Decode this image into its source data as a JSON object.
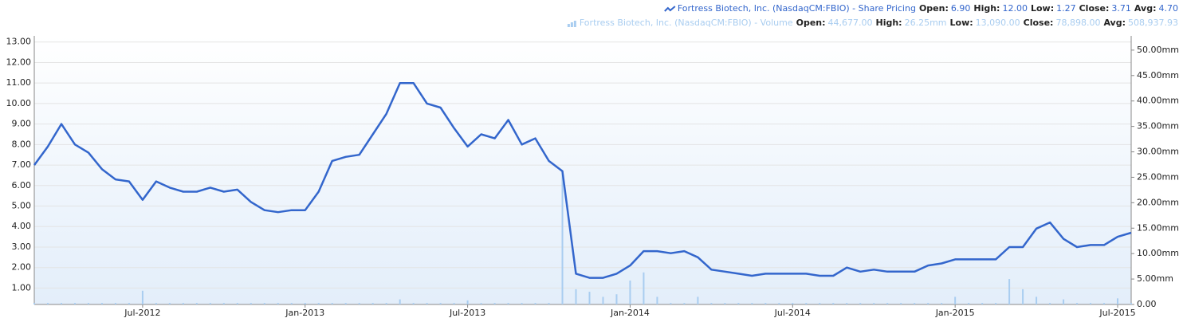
{
  "chart_data": {
    "type": "line",
    "categories": [
      null,
      null,
      null,
      null,
      null,
      null,
      null,
      null,
      "Jul-2012",
      null,
      null,
      null,
      null,
      null,
      null,
      null,
      null,
      null,
      null,
      null,
      "Jan-2013",
      null,
      null,
      null,
      null,
      null,
      null,
      null,
      null,
      null,
      null,
      null,
      "Jul-2013",
      null,
      null,
      null,
      null,
      null,
      null,
      null,
      null,
      null,
      null,
      null,
      "Jan-2014",
      null,
      null,
      null,
      null,
      null,
      null,
      null,
      null,
      null,
      null,
      null,
      "Jul-2014",
      null,
      null,
      null,
      null,
      null,
      null,
      null,
      null,
      null,
      null,
      null,
      "Jan-2015",
      null,
      null,
      null,
      null,
      null,
      null,
      null,
      null,
      null,
      null,
      null,
      "Jul-2015",
      null
    ],
    "series": [
      {
        "name": "Fortress Biotech, Inc. (NasdaqCM:FBIO) - Share Pricing",
        "color": "#3366cc",
        "stats": [
          {
            "label": "Open:",
            "value": "6.90"
          },
          {
            "label": "High:",
            "value": "12.00"
          },
          {
            "label": "Low:",
            "value": "1.27"
          },
          {
            "label": "Close:",
            "value": "3.71"
          },
          {
            "label": "Avg:",
            "value": "4.70"
          }
        ],
        "values": [
          7.0,
          7.9,
          9.0,
          8.0,
          7.6,
          6.8,
          6.3,
          6.2,
          5.3,
          6.2,
          5.9,
          5.7,
          5.7,
          5.9,
          5.7,
          5.8,
          5.2,
          4.8,
          4.7,
          4.8,
          4.8,
          5.7,
          7.2,
          7.4,
          7.5,
          8.5,
          9.5,
          11.0,
          11.0,
          10.0,
          9.8,
          8.8,
          7.9,
          8.5,
          8.3,
          9.2,
          8.0,
          8.3,
          7.2,
          6.7,
          1.7,
          1.5,
          1.5,
          1.7,
          2.1,
          2.8,
          2.8,
          2.7,
          2.8,
          2.5,
          1.9,
          1.8,
          1.7,
          1.6,
          1.7,
          1.7,
          1.7,
          1.7,
          1.6,
          1.6,
          2.0,
          1.8,
          1.9,
          1.8,
          1.8,
          1.8,
          2.1,
          2.2,
          2.4,
          2.4,
          2.4,
          2.4,
          3.0,
          3.0,
          3.9,
          4.2,
          3.4,
          3.0,
          3.1,
          3.1,
          3.5,
          3.7
        ]
      },
      {
        "name": "Fortress Biotech, Inc. (NasdaqCM:FBIO) - Volume",
        "color": "#a9cdf0",
        "axis": "y2",
        "stats": [
          {
            "label": "Open:",
            "value": "44,677.00"
          },
          {
            "label": "High:",
            "value": "26.25mm"
          },
          {
            "label": "Low:",
            "value": "13,090.00"
          },
          {
            "label": "Close:",
            "value": "78,898.00"
          },
          {
            "label": "Avg:",
            "value": "508,937.93"
          }
        ],
        "values": [
          0.3,
          0.3,
          0.3,
          0.3,
          0.3,
          0.3,
          0.3,
          0.3,
          2.7,
          0.3,
          0.3,
          0.3,
          0.3,
          0.3,
          0.3,
          0.3,
          0.3,
          0.3,
          0.3,
          0.3,
          0.3,
          0.3,
          0.3,
          0.3,
          0.3,
          0.3,
          0.3,
          1.0,
          0.3,
          0.3,
          0.3,
          0.3,
          0.8,
          0.3,
          0.3,
          0.3,
          0.3,
          0.3,
          0.3,
          26.25,
          3.0,
          2.5,
          1.5,
          2.0,
          4.7,
          6.3,
          1.5,
          0.3,
          0.3,
          1.5,
          0.3,
          0.3,
          0.3,
          0.3,
          0.3,
          0.3,
          0.3,
          0.3,
          0.3,
          0.3,
          0.3,
          0.3,
          0.3,
          0.3,
          0.3,
          0.3,
          0.3,
          0.3,
          1.5,
          0.3,
          0.3,
          0.3,
          5.0,
          3.0,
          1.5,
          0.3,
          1.0,
          0.3,
          0.3,
          0.3,
          1.2,
          0.3
        ]
      }
    ],
    "ylim": [
      0.2,
      13.3
    ],
    "yticks": [
      {
        "value": 1,
        "label": "1.00"
      },
      {
        "value": 2,
        "label": "2.00"
      },
      {
        "value": 3,
        "label": "3.00"
      },
      {
        "value": 4,
        "label": "4.00"
      },
      {
        "value": 5,
        "label": "5.00"
      },
      {
        "value": 6,
        "label": "6.00"
      },
      {
        "value": 7,
        "label": "7.00"
      },
      {
        "value": 8,
        "label": "8.00"
      },
      {
        "value": 9,
        "label": "9.00"
      },
      {
        "value": 10,
        "label": "10.00"
      },
      {
        "value": 11,
        "label": "11.00"
      },
      {
        "value": 12,
        "label": "12.00"
      },
      {
        "value": 13,
        "label": "13.00"
      }
    ],
    "y2lim": [
      0,
      52.8
    ],
    "y2ticks": [
      {
        "value": 0,
        "label": "0.00"
      },
      {
        "value": 5,
        "label": "5.00mm"
      },
      {
        "value": 10,
        "label": "10.00mm"
      },
      {
        "value": 15,
        "label": "15.00mm"
      },
      {
        "value": 20,
        "label": "20.00mm"
      },
      {
        "value": 25,
        "label": "25.00mm"
      },
      {
        "value": 30,
        "label": "30.00mm"
      },
      {
        "value": 35,
        "label": "35.00mm"
      },
      {
        "value": 40,
        "label": "40.00mm"
      },
      {
        "value": 45,
        "label": "45.00mm"
      },
      {
        "value": 50,
        "label": "50.00mm"
      }
    ],
    "grid": true
  }
}
